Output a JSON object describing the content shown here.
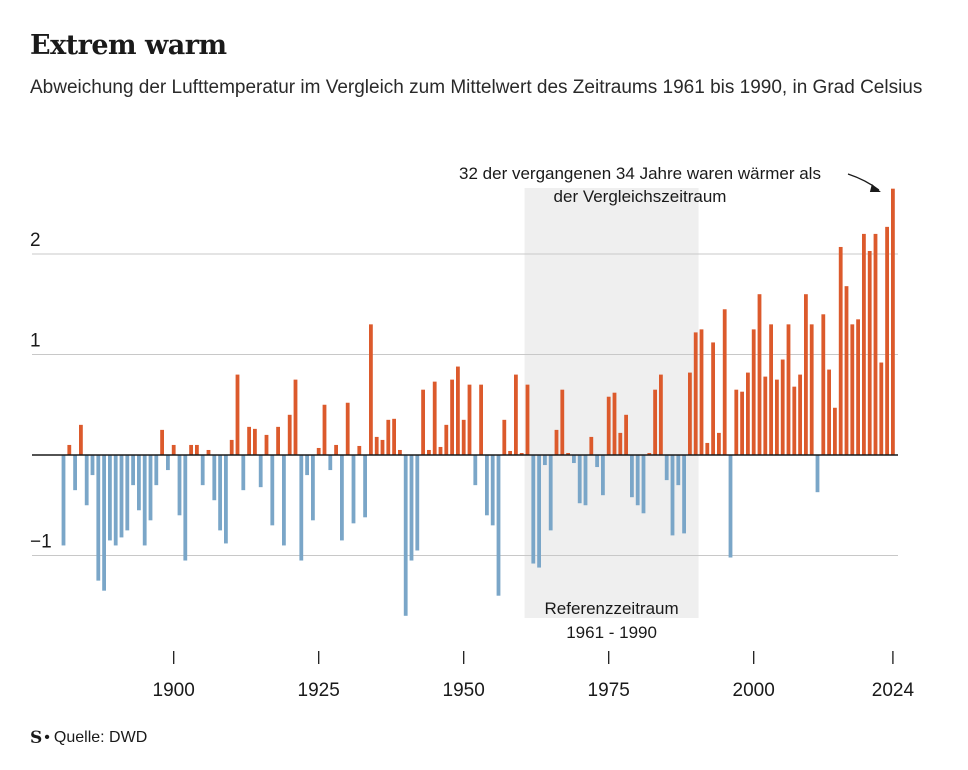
{
  "header": {
    "title": "Extrem warm",
    "subtitle": "Abweichung der Lufttemperatur im Vergleich zum Mittelwert des Zeitraums 1961 bis 1990, in Grad Celsius"
  },
  "footer": {
    "logo": "S",
    "dot": "•",
    "source": "Quelle: DWD"
  },
  "colors": {
    "positive": "#dc5a2c",
    "negative": "#7aa6c8",
    "grid": "#c8c8c8",
    "reference_band": "#efefef",
    "text": "#1a1a1a"
  },
  "chart_data": {
    "type": "bar",
    "title": "Extrem warm",
    "xlabel": "",
    "ylabel": "",
    "x_range": [
      1881,
      2024
    ],
    "ylim": [
      -1.7,
      2.7
    ],
    "y_ticks": [
      {
        "value": 2,
        "label": "2"
      },
      {
        "value": 1,
        "label": "1"
      },
      {
        "value": -1,
        "label": "−1"
      }
    ],
    "x_ticks": [
      {
        "value": 1900,
        "label": "1900"
      },
      {
        "value": 1925,
        "label": "1925"
      },
      {
        "value": 1950,
        "label": "1950"
      },
      {
        "value": 1975,
        "label": "1975"
      },
      {
        "value": 2000,
        "label": "2000"
      },
      {
        "value": 2024,
        "label": "2024"
      }
    ],
    "reference_period": {
      "start": 1961,
      "end": 1990,
      "label_line1": "Referenzzeitraum",
      "label_line2": "1961 - 1990"
    },
    "annotation": {
      "line1": "32 der vergangenen 34 Jahre waren wärmer als",
      "line2": "der Vergleichszeitraum",
      "target_year": 2024
    },
    "years": [
      1881,
      1882,
      1883,
      1884,
      1885,
      1886,
      1887,
      1888,
      1889,
      1890,
      1891,
      1892,
      1893,
      1894,
      1895,
      1896,
      1897,
      1898,
      1899,
      1900,
      1901,
      1902,
      1903,
      1904,
      1905,
      1906,
      1907,
      1908,
      1909,
      1910,
      1911,
      1912,
      1913,
      1914,
      1915,
      1916,
      1917,
      1918,
      1919,
      1920,
      1921,
      1922,
      1923,
      1924,
      1925,
      1926,
      1927,
      1928,
      1929,
      1930,
      1931,
      1932,
      1933,
      1934,
      1935,
      1936,
      1937,
      1938,
      1939,
      1940,
      1941,
      1942,
      1943,
      1944,
      1945,
      1946,
      1947,
      1948,
      1949,
      1950,
      1951,
      1952,
      1953,
      1954,
      1955,
      1956,
      1957,
      1958,
      1959,
      1960,
      1961,
      1962,
      1963,
      1964,
      1965,
      1966,
      1967,
      1968,
      1969,
      1970,
      1971,
      1972,
      1973,
      1974,
      1975,
      1976,
      1977,
      1978,
      1979,
      1980,
      1981,
      1982,
      1983,
      1984,
      1985,
      1986,
      1987,
      1988,
      1989,
      1990,
      1991,
      1992,
      1993,
      1994,
      1995,
      1996,
      1997,
      1998,
      1999,
      2000,
      2001,
      2002,
      2003,
      2004,
      2005,
      2006,
      2007,
      2008,
      2009,
      2010,
      2011,
      2012,
      2013,
      2014,
      2015,
      2016,
      2017,
      2018,
      2019,
      2020,
      2021,
      2022,
      2023,
      2024
    ],
    "values": [
      -0.9,
      0.1,
      -0.35,
      0.3,
      -0.5,
      -0.2,
      -1.25,
      -1.35,
      -0.85,
      -0.9,
      -0.82,
      -0.75,
      -0.3,
      -0.55,
      -0.9,
      -0.65,
      -0.3,
      0.25,
      -0.15,
      0.1,
      -0.6,
      -1.05,
      0.1,
      0.1,
      -0.3,
      0.05,
      -0.45,
      -0.75,
      -0.88,
      0.15,
      0.8,
      -0.35,
      0.28,
      0.26,
      -0.32,
      0.2,
      -0.7,
      0.28,
      -0.9,
      0.4,
      0.75,
      -1.05,
      -0.2,
      -0.65,
      0.07,
      0.5,
      -0.15,
      0.1,
      -0.85,
      0.52,
      -0.68,
      0.09,
      -0.62,
      1.3,
      0.18,
      0.15,
      0.35,
      0.36,
      0.05,
      -1.6,
      -1.05,
      -0.95,
      0.65,
      0.05,
      0.73,
      0.08,
      0.3,
      0.75,
      0.88,
      0.35,
      0.7,
      -0.3,
      0.7,
      -0.6,
      -0.7,
      -1.4,
      0.35,
      0.04,
      0.8,
      0.02,
      0.7,
      -1.08,
      -1.12,
      -0.1,
      -0.75,
      0.25,
      0.65,
      0.02,
      -0.08,
      -0.48,
      -0.5,
      0.18,
      -0.12,
      -0.4,
      0.58,
      0.62,
      0.22,
      0.4,
      -0.42,
      -0.5,
      -0.58,
      0.02,
      0.65,
      0.8,
      -0.25,
      -0.8,
      -0.3,
      -0.78,
      0.82,
      1.22,
      1.25,
      0.12,
      1.12,
      0.22,
      1.45,
      -1.02,
      0.65,
      0.63,
      0.82,
      1.25,
      1.6,
      0.78,
      1.3,
      0.75,
      0.95,
      1.3,
      0.68,
      0.8,
      1.6,
      1.3,
      -0.37,
      1.4,
      0.85,
      0.47,
      2.07,
      1.68,
      1.3,
      1.35,
      2.2,
      2.03,
      2.2,
      0.92,
      2.27,
      2.65
    ]
  }
}
